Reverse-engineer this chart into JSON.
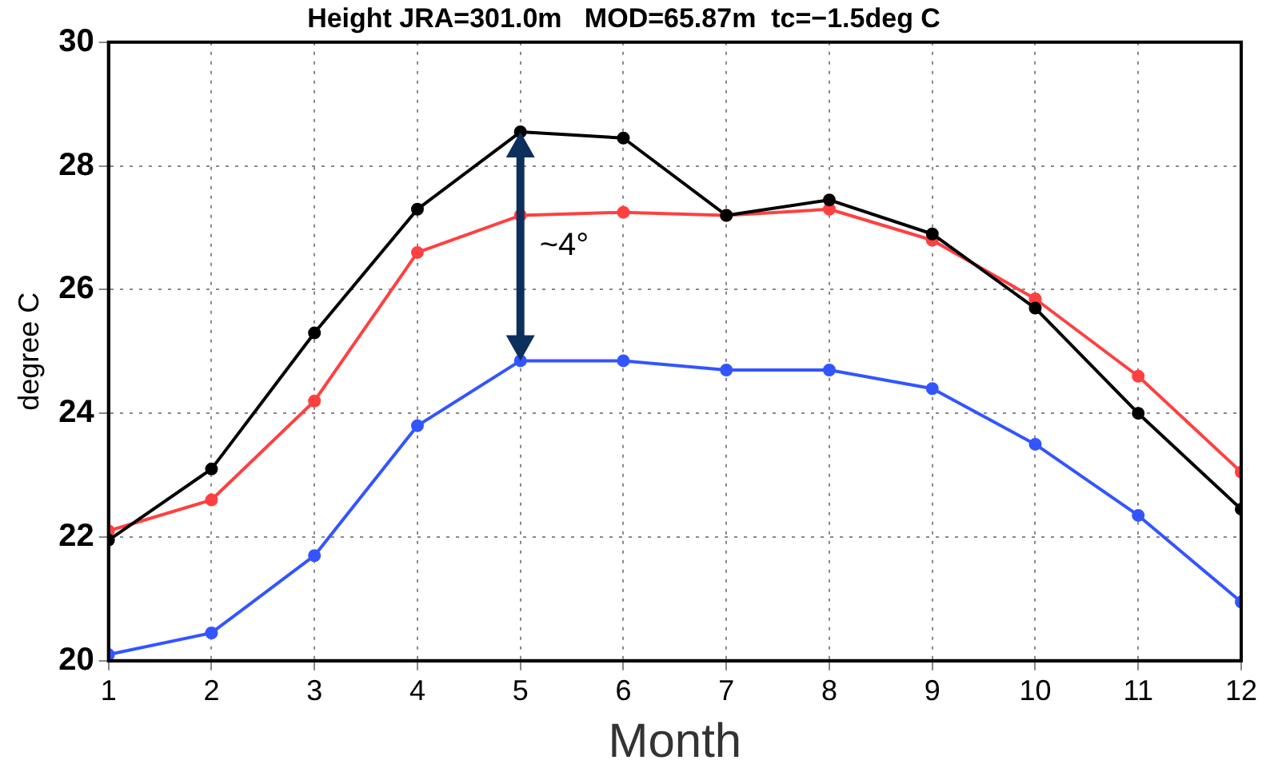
{
  "chart_data": {
    "type": "line",
    "title": "Height JRA=301.0m   MOD=65.87m  tc=−1.5deg C",
    "xlabel": "Month",
    "ylabel": "degree C",
    "x": [
      1,
      2,
      3,
      4,
      5,
      6,
      7,
      8,
      9,
      10,
      11,
      12
    ],
    "series": [
      {
        "color": "#000000",
        "values": [
          21.95,
          23.1,
          25.3,
          27.3,
          28.55,
          28.45,
          27.2,
          27.45,
          26.9,
          25.7,
          24.0,
          22.45
        ]
      },
      {
        "color": "#ff4040",
        "values": [
          22.1,
          22.6,
          24.2,
          26.6,
          27.2,
          27.25,
          27.2,
          27.3,
          26.8,
          25.85,
          24.6,
          23.05
        ]
      },
      {
        "color": "#3355ff",
        "values": [
          20.1,
          20.45,
          21.7,
          23.8,
          24.85,
          24.85,
          24.7,
          24.7,
          24.4,
          23.5,
          22.35,
          20.95
        ]
      }
    ],
    "xlim": [
      1,
      12
    ],
    "xticks": [
      1,
      2,
      3,
      4,
      5,
      6,
      7,
      8,
      9,
      10,
      11,
      12
    ],
    "ylim": [
      20,
      30
    ],
    "yticks": [
      20,
      22,
      24,
      26,
      28,
      30
    ],
    "grid": true,
    "legend": false,
    "marker": "circle",
    "line_style": "solid",
    "annotations": [
      "~4°"
    ]
  }
}
